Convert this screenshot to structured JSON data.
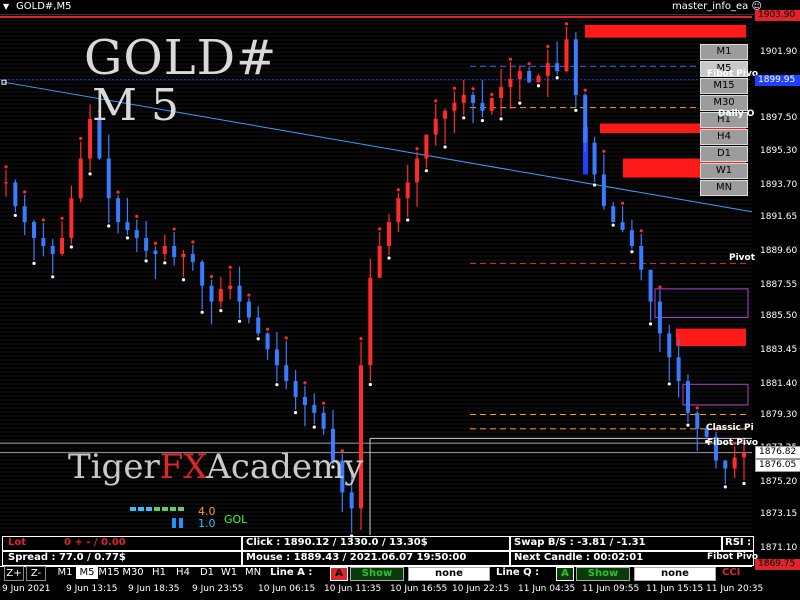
{
  "window": {
    "title": "GOLD#,M5",
    "ea_name": "master_info_ea"
  },
  "overlay": {
    "symbol": "GOLD#",
    "timeframe": "M 5",
    "brand_tiger": "Tiger",
    "brand_fx": "FX",
    "brand_academy": "Academy"
  },
  "timeframe_buttons": [
    "M1",
    "M5",
    "M15",
    "M30",
    "H1",
    "H4",
    "D1",
    "W1",
    "MN"
  ],
  "level_labels": {
    "fibo_pivot_top": "Fibot Pivo",
    "daily": "Daily O",
    "pivot": "Pivot",
    "classic": "Classic Pi",
    "fibo_pivot_low": "Fibot Pivo",
    "fibo_pivot_bottom": "Fibot Pivo"
  },
  "price_axis": {
    "ticks": [
      "1901.90",
      "1899.70",
      "1897.50",
      "1895.30",
      "1893.70",
      "1891.65",
      "1889.60",
      "1887.55",
      "1885.50",
      "1883.45",
      "1881.40",
      "1879.30",
      "1877.25",
      "1875.20",
      "1873.15",
      "1871.10"
    ],
    "top_red": "1903.90",
    "blue_marker": "1899.95",
    "bid_box": "1876.82",
    "ask_box": "1876.05",
    "bottom_red": "1869.75"
  },
  "strength_meter": {
    "value_top": "4.0",
    "value_bottom": "1.0",
    "label": "GOL"
  },
  "info_panel": {
    "lot_label": "Lot",
    "lot_value": "0 + - / 0.00",
    "click": "Click : 1890.12 / 1330.0 / 13.30$",
    "swap": "Swap B/S    : -3.81 / -1.31",
    "rsi": "RSI :",
    "spread": "Spread : 77.0 / 0.77$",
    "mouse": "Mouse : 1889.43 / 2021.06.07 19:50:00",
    "next_candle": "Next Candle : 00:02:01",
    "zoom_in": "Z+",
    "zoom_out": "Z-",
    "line_a": "Line A :",
    "line_a_flag": "A",
    "line_a_show": "Show",
    "line_a_none": "none",
    "line_q": "Line Q :",
    "line_q_flag": "A",
    "line_q_show": "Show",
    "line_q_none": "none",
    "cci": "CCI"
  },
  "time_axis": [
    "9 Jun 2021",
    "9 Jun 13:15",
    "9 Jun 18:35",
    "9 Jun 23:55",
    "10 Jun 06:15",
    "10 Jun 11:35",
    "10 Jun 16:55",
    "10 Jun 22:15",
    "11 Jun 04:35",
    "11 Jun 09:55",
    "11 Jun 15:15",
    "11 Jun 20:35"
  ],
  "chart_data": {
    "type": "line",
    "title": "GOLD#,M5",
    "xlabel": "",
    "ylabel": "",
    "ylim": [
      1869.75,
      1903.9
    ],
    "grid": false,
    "x_start": "9 Jun 2021",
    "x_end": "11 Jun 20:35",
    "series": [
      {
        "values": [
          1893.5,
          1892.0,
          1891.0,
          1890.0,
          1889.5,
          1889.0,
          1890.0,
          1892.5,
          1895.0,
          1897.5,
          1895.0,
          1892.5,
          1891.0,
          1890.5,
          1890.0,
          1889.2,
          1889.0,
          1889.5,
          1888.8,
          1889.0,
          1888.5,
          1887.0,
          1886.0,
          1886.8,
          1887.0,
          1886.0,
          1885.0,
          1884.0,
          1883.0,
          1882.0,
          1881.0,
          1880.0,
          1879.5,
          1879.0,
          1878.0,
          1876.0,
          1874.0,
          1873.0,
          1882.0,
          1887.5,
          1889.5,
          1891.0,
          1892.5,
          1893.5,
          1895.0,
          1896.5,
          1897.5,
          1898.0,
          1898.5,
          1899.0,
          1898.5,
          1898.0,
          1898.8,
          1899.5,
          1900.0,
          1900.5,
          1899.8,
          1900.2,
          1901.0,
          1900.5,
          1902.5,
          1899.0,
          1896.0,
          1894.0,
          1892.0,
          1891.0,
          1890.5,
          1889.5,
          1888.0,
          1886.0,
          1884.0,
          1882.5,
          1881.0,
          1879.0,
          1878.0,
          1877.5,
          1876.0,
          1875.5,
          1876.2,
          1876.5
        ]
      }
    ]
  }
}
